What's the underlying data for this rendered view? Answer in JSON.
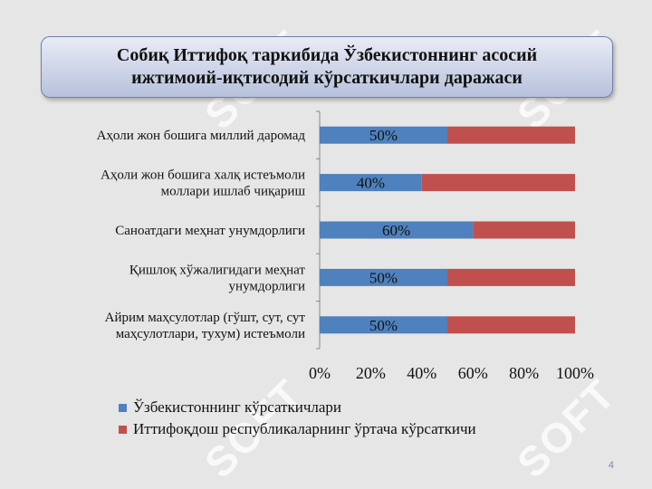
{
  "title": "Собиқ Иттифоқ таркибида Ўзбекистоннинг асосий\nижтимоий-иқтисодий кўрсаткичлари даражаси",
  "slide_number": "4",
  "watermark": {
    "text": "SOFT"
  },
  "colors": {
    "uzbekistan": "#4e81bd",
    "union_average": "#c0504d"
  },
  "chart_data": {
    "type": "bar",
    "orientation": "horizontal",
    "stacked": "percent",
    "categories": [
      [
        "Аҳоли жон бошига миллий даромад"
      ],
      [
        "Аҳоли жон бошига халқ истеъмоли",
        "моллари ишлаб чиқариш"
      ],
      [
        "Саноатдаги меҳнат унумдорлиги"
      ],
      [
        "Қишлоқ хўжалигидаги меҳнат",
        "унумдорлиги"
      ],
      [
        "Айрим маҳсулотлар (гўшт, сут, сут",
        "маҳсулотлари, тухум) истеъмоли"
      ]
    ],
    "series": [
      {
        "name": "Ўзбекистоннинг кўрсаткичлари",
        "values": [
          50,
          40,
          60,
          50,
          50
        ],
        "labels": [
          "50%",
          "40%",
          "60%",
          "50%",
          "50%"
        ]
      },
      {
        "name": "Иттифоқдош республикаларнинг ўртача кўрсаткичи",
        "values": [
          50,
          60,
          40,
          50,
          50
        ]
      }
    ],
    "x_ticks": [
      "0%",
      "20%",
      "40%",
      "60%",
      "80%",
      "100%"
    ],
    "xlim": [
      0,
      100
    ],
    "legend_position": "bottom",
    "grid": false
  }
}
